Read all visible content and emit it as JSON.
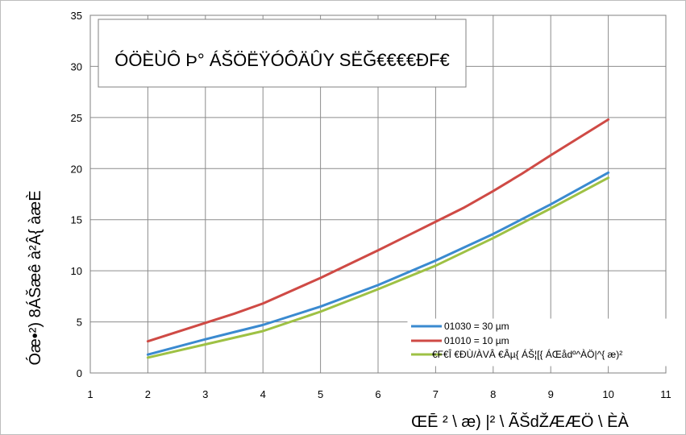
{
  "chart_data": {
    "type": "line",
    "title": "ÓÖÈÙÔ Þ° ÁŠÖËŸÓÔÄÛY SËĞ€€€€ĐF€",
    "xlabel": "ŒĒ ² \\ æ) |² \\ ÃŠdŽÆÆÖ \\ ÈÀ",
    "ylabel": "Óæ•²) 8ÁŠæê à²Â{ àæÈ",
    "xlim": [
      1,
      11
    ],
    "ylim": [
      0,
      35
    ],
    "xticks": [
      1,
      2,
      3,
      4,
      5,
      6,
      7,
      8,
      9,
      10,
      11
    ],
    "yticks": [
      0,
      5,
      10,
      15,
      20,
      25,
      30,
      35
    ],
    "grid": true,
    "legend_position": "bottom-right",
    "series": [
      {
        "name": "01030 = 30 µm",
        "color": "#3a8ad0",
        "x": [
          2,
          3,
          3.5,
          4,
          5,
          6,
          7,
          8,
          9,
          10
        ],
        "y": [
          1.8,
          3.3,
          4.0,
          4.7,
          6.5,
          8.6,
          11.0,
          13.6,
          16.5,
          19.6
        ]
      },
      {
        "name": "01010 = 10 µm",
        "color": "#cf4a45",
        "x": [
          2,
          3,
          3.5,
          4,
          5,
          6,
          7,
          7.5,
          8,
          8.5,
          9,
          10
        ],
        "y": [
          3.1,
          4.9,
          5.8,
          6.8,
          9.3,
          12.0,
          14.8,
          16.2,
          17.8,
          19.5,
          21.3,
          24.8
        ]
      },
      {
        "name": "€F€Î €ÐÙ/ÀVÂ €Âµ{ ÁŠ¦[{ ÁŒådº^ÀÖ|^{ æ)²",
        "color": "#9ec144",
        "x": [
          2,
          3,
          4,
          5,
          6,
          7,
          8,
          9,
          10
        ],
        "y": [
          1.5,
          2.8,
          4.1,
          6.0,
          8.2,
          10.5,
          13.2,
          16.1,
          19.1
        ]
      }
    ]
  }
}
